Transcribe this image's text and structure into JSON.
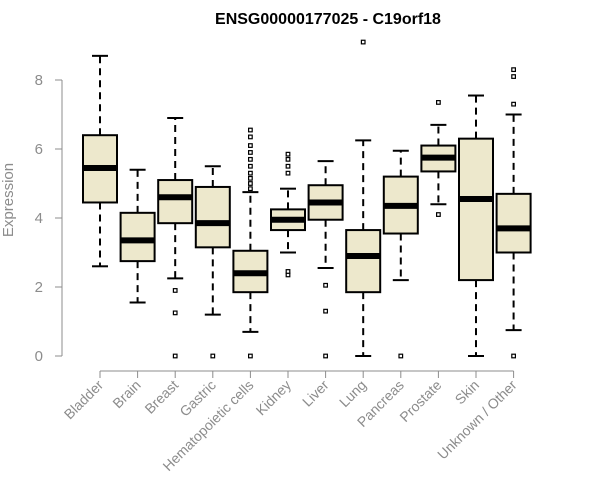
{
  "chart_data": {
    "type": "boxplot",
    "title": "ENSG00000177025 - C19orf18",
    "xlabel": "",
    "ylabel": "Expression",
    "ylim": [
      0,
      9.1
    ],
    "yticks": [
      0,
      2,
      4,
      6,
      8
    ],
    "box_fill": "#ede8cc",
    "categories": [
      "Bladder",
      "Brain",
      "Breast",
      "Gastric",
      "Hematopoietic cells",
      "Kidney",
      "Liver",
      "Lung",
      "Pancreas",
      "Prostate",
      "Skin",
      "Unknown / Other"
    ],
    "boxes": [
      {
        "whisker_low": 2.6,
        "q1": 4.45,
        "median": 5.45,
        "q3": 6.4,
        "whisker_high": 8.7,
        "outliers": []
      },
      {
        "whisker_low": 1.55,
        "q1": 2.75,
        "median": 3.35,
        "q3": 4.15,
        "whisker_high": 5.4,
        "outliers": []
      },
      {
        "whisker_low": 2.25,
        "q1": 3.85,
        "median": 4.6,
        "q3": 5.1,
        "whisker_high": 6.9,
        "outliers": [
          1.9,
          1.25,
          0
        ]
      },
      {
        "whisker_low": 1.2,
        "q1": 3.15,
        "median": 3.85,
        "q3": 4.9,
        "whisker_high": 5.5,
        "outliers": [
          0
        ]
      },
      {
        "whisker_low": 0.7,
        "q1": 1.85,
        "median": 2.4,
        "q3": 3.05,
        "whisker_high": 4.75,
        "outliers": [
          0,
          4.85,
          5.0,
          5.15,
          5.3,
          5.5,
          5.7,
          5.9,
          6.1,
          6.35,
          6.55
        ]
      },
      {
        "whisker_low": 3.0,
        "q1": 3.65,
        "median": 3.95,
        "q3": 4.25,
        "whisker_high": 4.85,
        "outliers": [
          2.35,
          2.45,
          5.3,
          5.5,
          5.7,
          5.85
        ]
      },
      {
        "whisker_low": 2.55,
        "q1": 3.95,
        "median": 4.45,
        "q3": 4.95,
        "whisker_high": 5.65,
        "outliers": [
          2.05,
          1.3,
          0
        ]
      },
      {
        "whisker_low": 0,
        "q1": 1.85,
        "median": 2.9,
        "q3": 3.65,
        "whisker_high": 6.25,
        "outliers": [
          9.1
        ]
      },
      {
        "whisker_low": 2.2,
        "q1": 3.55,
        "median": 4.35,
        "q3": 5.2,
        "whisker_high": 5.95,
        "outliers": [
          0
        ]
      },
      {
        "whisker_low": 4.4,
        "q1": 5.35,
        "median": 5.75,
        "q3": 6.1,
        "whisker_high": 6.7,
        "outliers": [
          4.1,
          7.35
        ]
      },
      {
        "whisker_low": 0,
        "q1": 2.2,
        "median": 4.55,
        "q3": 6.3,
        "whisker_high": 7.55,
        "outliers": []
      },
      {
        "whisker_low": 0.75,
        "q1": 3.0,
        "median": 3.7,
        "q3": 4.7,
        "whisker_high": 7.0,
        "outliers": [
          0,
          7.3,
          8.1,
          8.3
        ]
      }
    ]
  }
}
